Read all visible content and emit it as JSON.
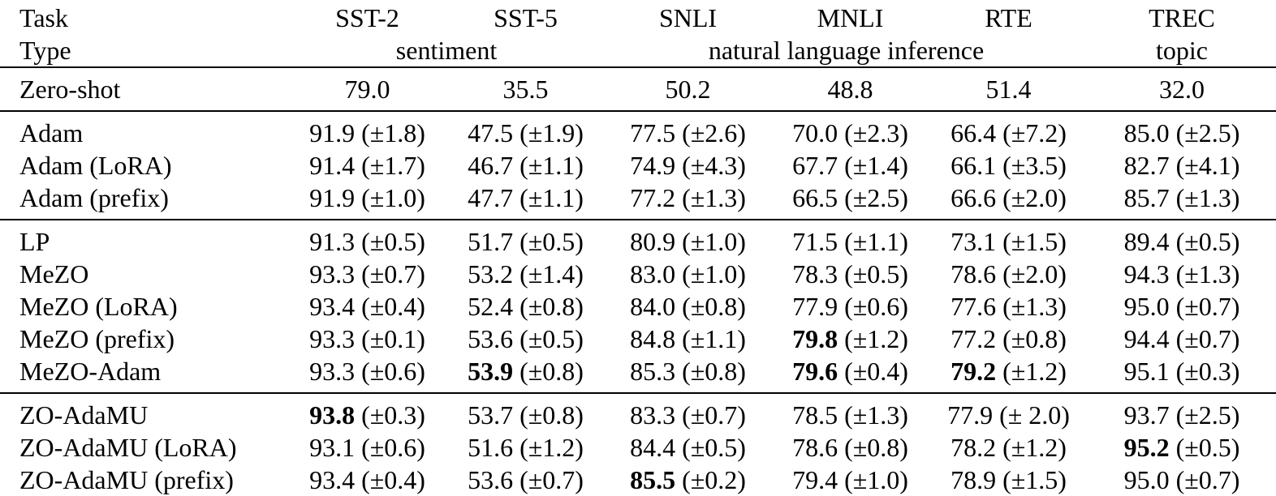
{
  "page": {
    "background": "#ffffff",
    "text_color": "#000000"
  },
  "table": {
    "header": {
      "row1_label": "Task",
      "row2_label": "Type",
      "datasets": [
        "SST-2",
        "SST-5",
        "SNLI",
        "MNLI",
        "RTE",
        "TREC"
      ],
      "task_types": [
        {
          "label": "sentiment",
          "span": 2
        },
        {
          "label": "natural language inference",
          "span": 3
        },
        {
          "label": "topic",
          "span": 1
        }
      ]
    },
    "sections": [
      {
        "name": "zero-shot",
        "rows": [
          {
            "label": "Zero-shot",
            "cells": [
              {
                "value": "79.0"
              },
              {
                "value": "35.5"
              },
              {
                "value": "50.2"
              },
              {
                "value": "48.8"
              },
              {
                "value": "51.4"
              },
              {
                "value": "32.0"
              }
            ]
          }
        ]
      },
      {
        "name": "adam",
        "rows": [
          {
            "label": "Adam",
            "cells": [
              {
                "value": "91.9",
                "std": "(±1.8)"
              },
              {
                "value": "47.5",
                "std": "(±1.9)"
              },
              {
                "value": "77.5",
                "std": "(±2.6)"
              },
              {
                "value": "70.0",
                "std": "(±2.3)"
              },
              {
                "value": "66.4",
                "std": "(±7.2)"
              },
              {
                "value": "85.0",
                "std": "(±2.5)"
              }
            ]
          },
          {
            "label": "Adam (LoRA)",
            "cells": [
              {
                "value": "91.4",
                "std": "(±1.7)"
              },
              {
                "value": "46.7",
                "std": "(±1.1)"
              },
              {
                "value": "74.9",
                "std": "(±4.3)"
              },
              {
                "value": "67.7",
                "std": "(±1.4)"
              },
              {
                "value": "66.1",
                "std": "(±3.5)"
              },
              {
                "value": "82.7",
                "std": "(±4.1)"
              }
            ]
          },
          {
            "label": "Adam (prefix)",
            "cells": [
              {
                "value": "91.9",
                "std": "(±1.0)"
              },
              {
                "value": "47.7",
                "std": "(±1.1)"
              },
              {
                "value": "77.2",
                "std": "(±1.3)"
              },
              {
                "value": "66.5",
                "std": "(±2.5)"
              },
              {
                "value": "66.6",
                "std": "(±2.0)"
              },
              {
                "value": "85.7",
                "std": "(±1.3)"
              }
            ]
          }
        ]
      },
      {
        "name": "mezo",
        "rows": [
          {
            "label": "LP",
            "cells": [
              {
                "value": "91.3",
                "std": "(±0.5)"
              },
              {
                "value": "51.7",
                "std": "(±0.5)"
              },
              {
                "value": "80.9",
                "std": "(±1.0)"
              },
              {
                "value": "71.5",
                "std": "(±1.1)"
              },
              {
                "value": "73.1",
                "std": "(±1.5)"
              },
              {
                "value": "89.4",
                "std": "(±0.5)"
              }
            ]
          },
          {
            "label": "MeZO",
            "cells": [
              {
                "value": "93.3",
                "std": "(±0.7)"
              },
              {
                "value": "53.2",
                "std": "(±1.4)"
              },
              {
                "value": "83.0",
                "std": "(±1.0)"
              },
              {
                "value": "78.3",
                "std": "(±0.5)"
              },
              {
                "value": "78.6",
                "std": "(±2.0)"
              },
              {
                "value": "94.3",
                "std": "(±1.3)"
              }
            ]
          },
          {
            "label": "MeZO (LoRA)",
            "cells": [
              {
                "value": "93.4",
                "std": "(±0.4)"
              },
              {
                "value": "52.4",
                "std": "(±0.8)"
              },
              {
                "value": "84.0",
                "std": "(±0.8)"
              },
              {
                "value": "77.9",
                "std": "(±0.6)"
              },
              {
                "value": "77.6",
                "std": "(±1.3)"
              },
              {
                "value": "95.0",
                "std": "(±0.7)"
              }
            ]
          },
          {
            "label": "MeZO (prefix)",
            "cells": [
              {
                "value": "93.3",
                "std": "(±0.1)"
              },
              {
                "value": "53.6",
                "std": "(±0.5)"
              },
              {
                "value": "84.8",
                "std": "(±1.1)"
              },
              {
                "value": "79.8",
                "std": "(±1.2)",
                "bold": true
              },
              {
                "value": "77.2",
                "std": "(±0.8)"
              },
              {
                "value": "94.4",
                "std": "(±0.7)"
              }
            ]
          },
          {
            "label": "MeZO-Adam",
            "cells": [
              {
                "value": "93.3",
                "std": "(±0.6)"
              },
              {
                "value": "53.9",
                "std": "(±0.8)",
                "bold": true
              },
              {
                "value": "85.3",
                "std": "(±0.8)"
              },
              {
                "value": "79.6",
                "std": "(±0.4)",
                "bold": true
              },
              {
                "value": "79.2",
                "std": "(±1.2)",
                "bold": true
              },
              {
                "value": "95.1",
                "std": "(±0.3)"
              }
            ]
          }
        ]
      },
      {
        "name": "zo-adamu",
        "rows": [
          {
            "label": "ZO-AdaMU",
            "cells": [
              {
                "value": "93.8",
                "std": "(±0.3)",
                "bold": true
              },
              {
                "value": "53.7",
                "std": "(±0.8)"
              },
              {
                "value": "83.3",
                "std": "(±0.7)"
              },
              {
                "value": "78.5",
                "std": "(±1.3)"
              },
              {
                "value": "77.9",
                "std": "(± 2.0)"
              },
              {
                "value": "93.7",
                "std": "(±2.5)"
              }
            ]
          },
          {
            "label": "ZO-AdaMU (LoRA)",
            "cells": [
              {
                "value": "93.1",
                "std": "(±0.6)"
              },
              {
                "value": "51.6",
                "std": "(±1.2)"
              },
              {
                "value": "84.4",
                "std": "(±0.5)"
              },
              {
                "value": "78.6",
                "std": "(±0.8)"
              },
              {
                "value": "78.2",
                "std": "(±1.2)"
              },
              {
                "value": "95.2",
                "std": "(±0.5)",
                "bold": true
              }
            ]
          },
          {
            "label": "ZO-AdaMU (prefix)",
            "cells": [
              {
                "value": "93.4",
                "std": "(±0.4)"
              },
              {
                "value": "53.6",
                "std": "(±0.7)"
              },
              {
                "value": "85.5",
                "std": "(±0.2)",
                "bold": true
              },
              {
                "value": "79.4",
                "std": "(±1.0)"
              },
              {
                "value": "78.9",
                "std": "(±1.5)"
              },
              {
                "value": "95.0",
                "std": "(±0.7)"
              }
            ]
          }
        ]
      }
    ]
  }
}
